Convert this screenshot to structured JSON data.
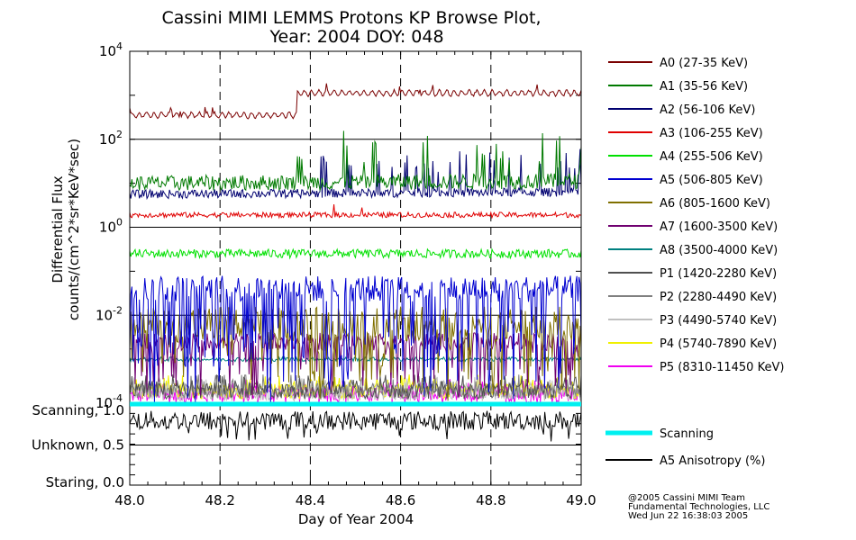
{
  "chart_data": {
    "type": "line",
    "title": [
      "Cassini MIMI LEMMS Protons KP Browse Plot,",
      "Year: 2004 DOY: 048"
    ],
    "xlabel": "Day of Year 2004",
    "ylabel": [
      "Differential Flux",
      "counts/(cm^2*sr*KeV*sec)"
    ],
    "xlim": [
      48.0,
      49.0
    ],
    "x_ticks": [
      "48.0",
      "48.2",
      "48.4",
      "48.6",
      "48.8",
      "49.0"
    ],
    "ylim_log10": [
      -4,
      4
    ],
    "y_ticks": [
      {
        "base": "10",
        "exp": "4"
      },
      {
        "base": "10",
        "exp": "2"
      },
      {
        "base": "10",
        "exp": "0"
      },
      {
        "base": "10",
        "exp": "-2"
      },
      {
        "base": "10",
        "exp": "-4"
      }
    ],
    "series": [
      {
        "name": "A0 (27-35 KeV)",
        "color": "#7a0000",
        "log10_level": [
          2.55,
          3.05
        ],
        "step_at": 48.37
      },
      {
        "name": "A1 (35-56 KeV)",
        "color": "#007a00",
        "log10_level": [
          1.0,
          1.05
        ],
        "spiky_after": 48.37
      },
      {
        "name": "A2 (56-106 KeV)",
        "color": "#000070",
        "log10_level": [
          0.75,
          0.8
        ]
      },
      {
        "name": "A3 (106-255 KeV)",
        "color": "#e00000",
        "log10_level": [
          0.28,
          0.28
        ]
      },
      {
        "name": "A4 (255-506 KeV)",
        "color": "#00e000",
        "log10_level": [
          -0.6,
          -0.6
        ]
      },
      {
        "name": "A5 (506-805 KeV)",
        "color": "#0000d0",
        "log10_level": [
          -1.4,
          -1.4
        ]
      },
      {
        "name": "A6 (805-1600 KeV)",
        "color": "#807000",
        "log10_level": [
          -2.2,
          -2.2
        ]
      },
      {
        "name": "A7 (1600-3500 KeV)",
        "color": "#700070",
        "log10_level": [
          -2.6,
          -2.6
        ]
      },
      {
        "name": "A8 (3500-4000 KeV)",
        "color": "#008080",
        "log10_level": [
          -3.0,
          -3.0
        ]
      },
      {
        "name": "P1 (1420-2280 KeV)",
        "color": "#505050",
        "log10_level": [
          -3.9,
          -3.9
        ]
      },
      {
        "name": "P2 (2280-4490 KeV)",
        "color": "#808080",
        "log10_level": [
          -3.9,
          -3.9
        ]
      },
      {
        "name": "P3 (4490-5740 KeV)",
        "color": "#c0c0c0",
        "log10_level": [
          -3.95,
          -3.95
        ]
      },
      {
        "name": "P4 (5740-7890 KeV)",
        "color": "#f0f000",
        "log10_level": [
          -3.9,
          -3.9
        ]
      },
      {
        "name": "P5 (8310-11450 KeV)",
        "color": "#f000f0",
        "log10_level": [
          -4.0,
          -4.0
        ]
      }
    ],
    "lower_panel": {
      "y_ticks": [
        "Scanning, 1.0",
        "Unknown, 0.5",
        "Staring, 0.0"
      ],
      "ylim": [
        0.0,
        1.0
      ],
      "series": [
        {
          "name": "Scanning",
          "color": "#00f0f0",
          "level": 1.0
        },
        {
          "name": "A5 Anisotropy (%)",
          "color": "#000000",
          "level": 0.8
        }
      ]
    }
  },
  "credits": [
    "@2005 Cassini MIMI Team",
    "Fundamental Technologies, LLC",
    "Wed Jun 22 16:38:03 2005"
  ]
}
